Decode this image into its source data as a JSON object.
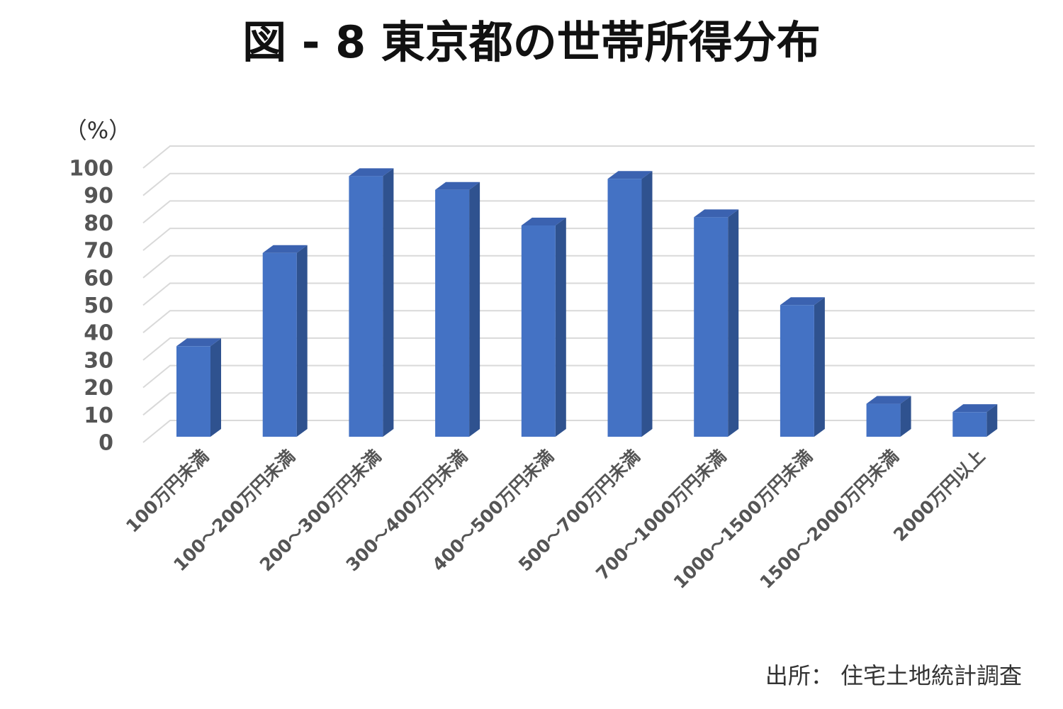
{
  "chart_data": {
    "type": "bar3d",
    "title": "図 - 8 東京都の世帯所得分布",
    "y_label": "（%）",
    "source": "出所： 住宅土地統計調査",
    "categories": [
      "100万円未満",
      "100～200万円未満",
      "200～300万円未満",
      "300～400万円未満",
      "400～500万円未満",
      "500～700万円未満",
      "700～1000万円未満",
      "1000～1500万円未満",
      "1500～2000万円未満",
      "2000万円以上"
    ],
    "values": [
      33,
      67,
      95,
      90,
      77,
      94,
      80,
      48,
      12,
      9
    ],
    "color": "#4472c4",
    "side_color": "#2f528f",
    "top_color": "#3b62b0",
    "ylim": [
      0,
      100
    ],
    "yticks": [
      0,
      10,
      20,
      30,
      40,
      50,
      60,
      70,
      80,
      90,
      100
    ],
    "grid": true
  }
}
